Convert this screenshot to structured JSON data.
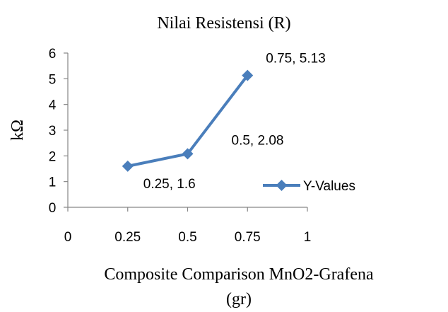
{
  "chart_data": {
    "type": "line",
    "title": "Nilai Resistensi (R)",
    "xlabel_lines": [
      "Composite Comparison MnO2-Grafena",
      "(gr)"
    ],
    "ylabel": "kΩ",
    "xlim": [
      0,
      1
    ],
    "ylim": [
      0,
      6
    ],
    "x_ticks": [
      0,
      0.25,
      0.5,
      0.75,
      1
    ],
    "x_tick_labels": [
      "0",
      "0.25",
      "0.5",
      "0.75",
      "1"
    ],
    "y_ticks": [
      0,
      1,
      2,
      3,
      4,
      5,
      6
    ],
    "y_tick_labels": [
      "0",
      "1",
      "2",
      "3",
      "4",
      "5",
      "6"
    ],
    "grid": false,
    "legend_position": "right",
    "series": [
      {
        "name": "Y-Values",
        "color": "#4a7ebb",
        "marker": "diamond",
        "x": [
          0.25,
          0.5,
          0.75
        ],
        "y": [
          1.6,
          2.08,
          5.13
        ],
        "data_labels": [
          "0.25, 1.6",
          "0.5, 2.08",
          "0.75, 5.13"
        ]
      }
    ]
  }
}
